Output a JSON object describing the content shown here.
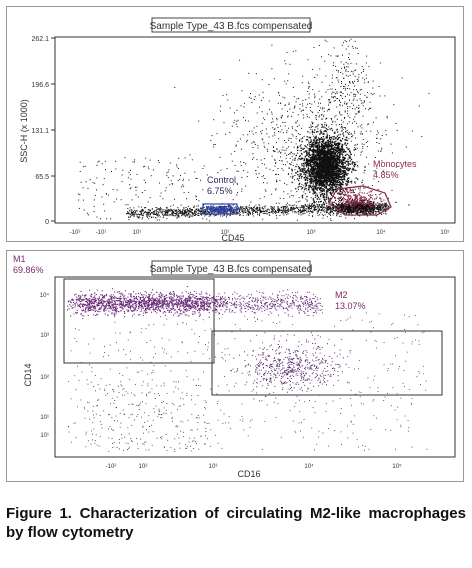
{
  "figure": {
    "caption": "Figure 1. Characterization of circulating M2-like macrophages by flow cytometry"
  },
  "chart_data": [
    {
      "type": "scatter",
      "title": "Sample Type_43 B.fcs compensated",
      "xlabel": "CD45",
      "ylabel": "SSC-H (x 1000)",
      "x_scale": "log",
      "x_tick_labels": [
        "-10²",
        "-10¹",
        "10¹",
        "10²",
        "10³",
        "10⁴",
        "10⁵"
      ],
      "y_tick_labels": [
        "0",
        "65.5",
        "131.1",
        "196.6",
        "262.1"
      ],
      "ylim": [
        0,
        262.1
      ],
      "gates": [
        {
          "name": "Control",
          "value": "6.75%",
          "color": "#3040a0"
        },
        {
          "name": "Monocytes",
          "value": "4.85%",
          "color": "#8a2a4a"
        }
      ],
      "populations": [
        {
          "name": "main-cluster",
          "x_log": 2.45,
          "y": 75,
          "color": "#111111"
        },
        {
          "name": "control",
          "x_log": 0.5,
          "y": 8,
          "color": "#3040a0"
        },
        {
          "name": "monocytes",
          "x_log": 3.0,
          "y": 18,
          "color": "#8a2a4a"
        }
      ]
    },
    {
      "type": "scatter",
      "title": "Sample Type_43 B.fcs compensated",
      "xlabel": "CD16",
      "ylabel": "CD14",
      "x_scale": "log",
      "y_scale": "log",
      "x_tick_labels": [
        "-10²",
        "10²",
        "10³",
        "10⁴",
        "10⁵"
      ],
      "y_tick_labels": [
        "10⁴",
        "10³",
        "10²",
        "10¹",
        "10¹"
      ],
      "gates": [
        {
          "name": "M1",
          "value": "69.86%",
          "color": "#7a2a6a"
        },
        {
          "name": "M2",
          "value": "13.07%",
          "color": "#7a2a6a"
        }
      ],
      "populations": [
        {
          "name": "cd14-high",
          "color": "#6a2a7a"
        },
        {
          "name": "cd16-high",
          "color": "#5a2a6a"
        }
      ]
    }
  ]
}
